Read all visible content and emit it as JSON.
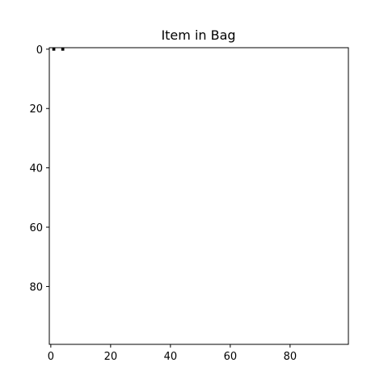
{
  "chart_data": {
    "type": "heatmap",
    "title": "Item in Bag",
    "xlabel": "",
    "ylabel": "",
    "xlim": [
      -0.5,
      99.5
    ],
    "ylim": [
      99.5,
      -0.5
    ],
    "grid": false,
    "xticks": [
      "0",
      "20",
      "40",
      "60",
      "80"
    ],
    "yticks": [
      "0",
      "20",
      "40",
      "60",
      "80"
    ],
    "xtick_values": [
      0,
      20,
      40,
      60,
      80
    ],
    "ytick_values": [
      0,
      20,
      40,
      60,
      80
    ],
    "background_color": "#ffffff",
    "mark_color": "#000000",
    "cells": [
      {
        "x": 1,
        "y": 0,
        "value": 1
      },
      {
        "x": 4,
        "y": 0,
        "value": 1
      }
    ]
  }
}
